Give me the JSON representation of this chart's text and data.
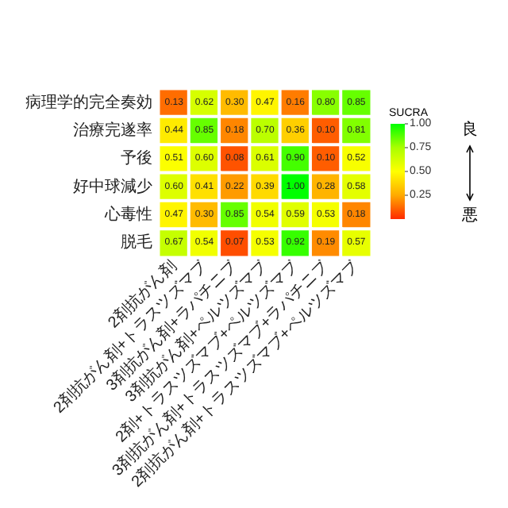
{
  "chart_data": {
    "type": "heatmap",
    "clabel": "SUCRA",
    "categories": [
      "2剤抗がん剤",
      "2剤抗がん剤+トラスツズマブ",
      "3剤抗がん剤+ラパチニブ",
      "3剤抗がん剤+ペルツズマブ",
      "2剤+トラスツズマブ+ペルツズマブ",
      "3剤抗がん剤+トラスツズマブ+ラパチニブ",
      "2剤抗がん剤+トラスツズマブ+ペルツズマブ"
    ],
    "y_categories": [
      "病理学的完全奏効",
      "治療完遂率",
      "予後",
      "好中球減少",
      "心毒性",
      "脱毛"
    ],
    "cells": [
      [
        0.13,
        0.62,
        0.3,
        0.47,
        0.16,
        0.8,
        0.85
      ],
      [
        0.44,
        0.85,
        0.18,
        0.7,
        0.36,
        0.1,
        0.81
      ],
      [
        0.51,
        0.6,
        0.08,
        0.61,
        0.9,
        0.1,
        0.52
      ],
      [
        0.6,
        0.41,
        0.22,
        0.39,
        1.0,
        0.28,
        0.58
      ],
      [
        0.47,
        0.3,
        0.85,
        0.54,
        0.59,
        0.53,
        0.18
      ],
      [
        0.67,
        0.54,
        0.07,
        0.53,
        0.92,
        0.19,
        0.57
      ]
    ],
    "cell_labels": [
      [
        "0.13",
        "0.62",
        "0.30",
        "0.47",
        "0.16",
        "0.80",
        "0.85"
      ],
      [
        "0.44",
        "0.85",
        "0.18",
        "0.70",
        "0.36",
        "0.10",
        "0.81"
      ],
      [
        "0.51",
        "0.60",
        "0.08",
        "0.61",
        "0.90",
        "0.10",
        "0.52"
      ],
      [
        "0.60",
        "0.41",
        "0.22",
        "0.39",
        "1.00",
        "0.28",
        "0.58"
      ],
      [
        "0.47",
        "0.30",
        "0.85",
        "0.54",
        "0.59",
        "0.53",
        "0.18"
      ],
      [
        "0.67",
        "0.54",
        "0.07",
        "0.53",
        "0.92",
        "0.19",
        "0.57"
      ]
    ],
    "clim": [
      0,
      1
    ],
    "cticks": [
      0.25,
      {
        "value": 0.5,
        "label": "0.50"
      },
      0.75,
      {
        "value": 1,
        "label": "1.00"
      }
    ],
    "colors": [
      "#ff2a00",
      "#ffaa00",
      "#ffff00",
      "#aaff00",
      "#00ff00"
    ],
    "annotations": [
      "良",
      "悪"
    ]
  }
}
